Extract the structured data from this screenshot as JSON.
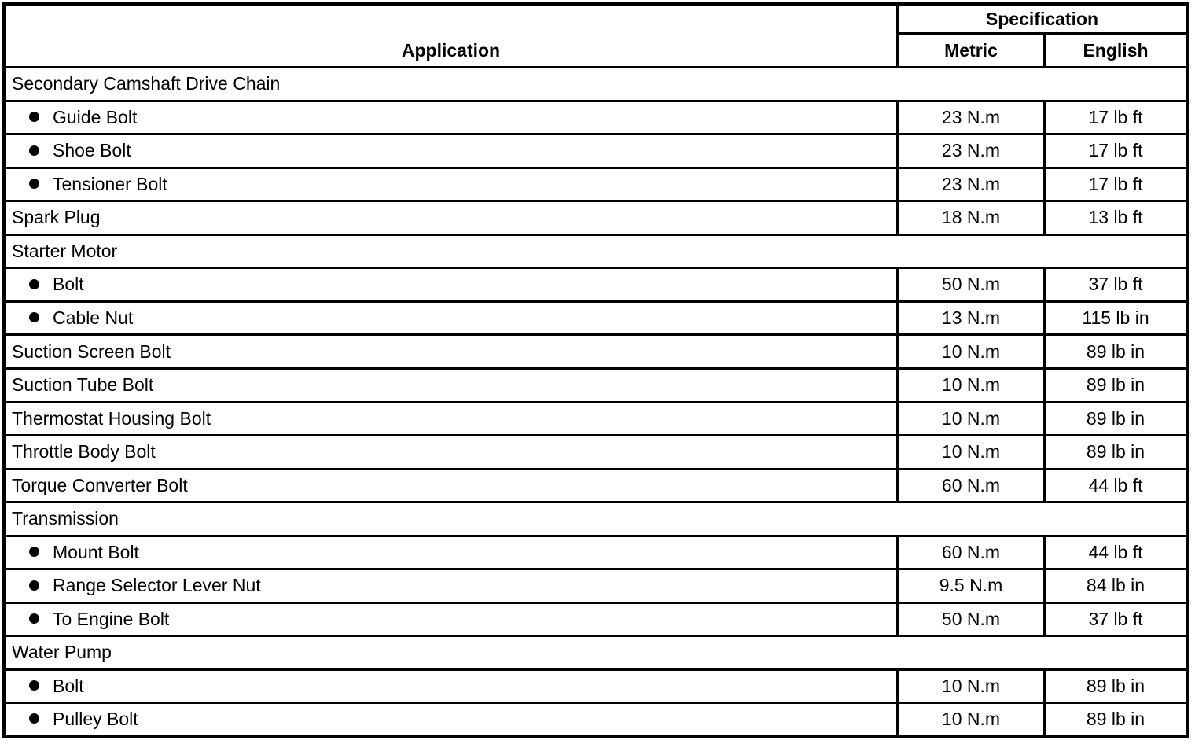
{
  "table": {
    "header": {
      "application": "Application",
      "specification": "Specification",
      "metric": "Metric",
      "english": "English"
    },
    "rows": [
      {
        "type": "section",
        "label": "Secondary Camshaft Drive Chain"
      },
      {
        "type": "item",
        "label": "Guide Bolt",
        "metric": "23 N.m",
        "english": "17 lb ft"
      },
      {
        "type": "item",
        "label": "Shoe Bolt",
        "metric": "23 N.m",
        "english": "17 lb ft"
      },
      {
        "type": "item",
        "label": "Tensioner Bolt",
        "metric": "23 N.m",
        "english": "17 lb ft"
      },
      {
        "type": "plain",
        "label": "Spark Plug",
        "metric": "18 N.m",
        "english": "13 lb ft"
      },
      {
        "type": "section",
        "label": "Starter Motor"
      },
      {
        "type": "item",
        "label": "Bolt",
        "metric": "50 N.m",
        "english": "37 lb ft"
      },
      {
        "type": "item",
        "label": "Cable Nut",
        "metric": "13 N.m",
        "english": "115 lb in"
      },
      {
        "type": "plain",
        "label": "Suction Screen Bolt",
        "metric": "10 N.m",
        "english": "89 lb in"
      },
      {
        "type": "plain",
        "label": "Suction Tube Bolt",
        "metric": "10 N.m",
        "english": "89 lb in"
      },
      {
        "type": "plain",
        "label": "Thermostat Housing Bolt",
        "metric": "10 N.m",
        "english": "89 lb in"
      },
      {
        "type": "plain",
        "label": "Throttle Body Bolt",
        "metric": "10 N.m",
        "english": "89 lb in"
      },
      {
        "type": "plain",
        "label": "Torque Converter Bolt",
        "metric": "60 N.m",
        "english": "44 lb ft"
      },
      {
        "type": "section",
        "label": "Transmission"
      },
      {
        "type": "item",
        "label": "Mount Bolt",
        "metric": "60 N.m",
        "english": "44 lb ft"
      },
      {
        "type": "item",
        "label": "Range Selector Lever Nut",
        "metric": "9.5 N.m",
        "english": "84 lb in"
      },
      {
        "type": "item",
        "label": "To Engine Bolt",
        "metric": "50 N.m",
        "english": "37 lb ft"
      },
      {
        "type": "section",
        "label": "Water Pump"
      },
      {
        "type": "item",
        "label": "Bolt",
        "metric": "10 N.m",
        "english": "89 lb in"
      },
      {
        "type": "item",
        "label": "Pulley Bolt",
        "metric": "10 N.m",
        "english": "89 lb in"
      }
    ],
    "colors": {
      "border": "#000000",
      "background": "#ffffff",
      "text": "#000000"
    }
  }
}
